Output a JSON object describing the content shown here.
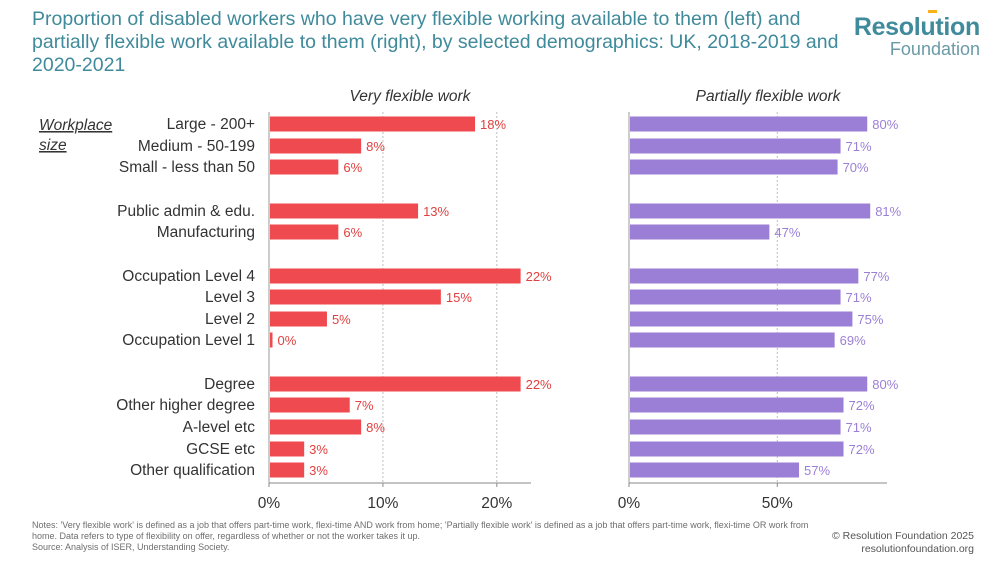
{
  "title": "Proportion of disabled workers who have very flexible working available to them (left) and partially flexible work available to them (right), by selected demographics: UK, 2018-2019 and 2020-2021",
  "brand": {
    "name": "Resolution",
    "sub": "Foundation"
  },
  "notes": {
    "line1": "Notes: 'Very flexible work' is defined as a job that offers part-time work, flexi-time AND work from home; 'Partially flexible work' is defined as a job that offers part-time work, flexi-time OR work from home. Data refers to type of flexibility on offer, regardless of whether or not the worker takes it up.",
    "line2": "Source: Analysis of ISER, Understanding Society."
  },
  "copyright": {
    "line1": "© Resolution Foundation 2025",
    "line2": "resolutionfoundation.org"
  },
  "colors": {
    "left_bar": "#ef4a4f",
    "right_bar": "#9b7fd6",
    "left_label": "#e0403f",
    "right_label": "#9b7fd6",
    "grid": "#bdbdbd",
    "axis": "#8a8a8a"
  },
  "chart_data": {
    "type": "bar",
    "group_label": "Workplace size",
    "categories": [
      "Large - 200+",
      "Medium - 50-199",
      "Small - less than 50",
      "Public admin & edu.",
      "Manufacturing",
      "Occupation Level 4",
      "Level 3",
      "Level 2",
      "Occupation Level 1",
      "Degree",
      "Other higher degree",
      "A-level etc",
      "GCSE etc",
      "Other qualification"
    ],
    "groups": [
      [
        0,
        1,
        2
      ],
      [
        3,
        4
      ],
      [
        5,
        6,
        7,
        8
      ],
      [
        9,
        10,
        11,
        12,
        13
      ]
    ],
    "panels": [
      {
        "title": "Very flexible work",
        "values": [
          18,
          8,
          6,
          13,
          6,
          22,
          15,
          5,
          0,
          22,
          7,
          8,
          3,
          3
        ],
        "labels": [
          "18%",
          "8%",
          "6%",
          "13%",
          "6%",
          "22%",
          "15%",
          "5%",
          "0%",
          "22%",
          "7%",
          "8%",
          "3%",
          "3%"
        ],
        "xlim": [
          0,
          23
        ],
        "ticks": [
          0,
          10,
          20
        ],
        "tick_labels": [
          "0%",
          "10%",
          "20%"
        ]
      },
      {
        "title": "Partially flexible work",
        "values": [
          80,
          71,
          70,
          81,
          47,
          77,
          71,
          75,
          69,
          80,
          72,
          71,
          72,
          57
        ],
        "labels": [
          "80%",
          "71%",
          "70%",
          "81%",
          "47%",
          "77%",
          "71%",
          "75%",
          "69%",
          "80%",
          "72%",
          "71%",
          "72%",
          "57%"
        ],
        "xlim": [
          0,
          87
        ],
        "ticks": [
          0,
          50
        ],
        "tick_labels": [
          "0%",
          "50%"
        ]
      }
    ]
  }
}
